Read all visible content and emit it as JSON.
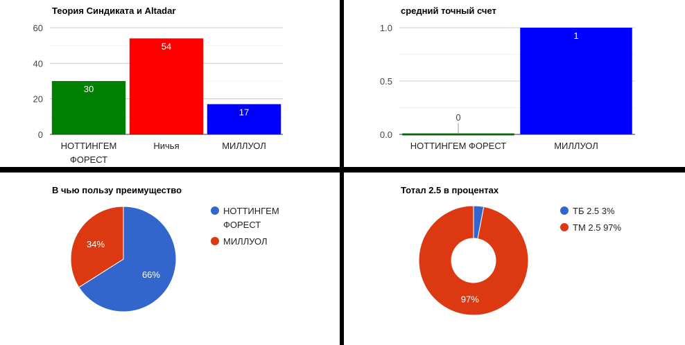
{
  "chart_data": [
    {
      "type": "bar",
      "title": "Теория Синдиката и Altadar",
      "categories": [
        [
          "НОТТИНГЕМ",
          "ФОРЕСТ"
        ],
        [
          "Ничья"
        ],
        [
          "МИЛЛУОЛ"
        ]
      ],
      "values": [
        30,
        54,
        17
      ],
      "value_labels": [
        "30",
        "54",
        "17"
      ],
      "colors": [
        "#008000",
        "#ff0000",
        "#0000ff"
      ],
      "yticks": [
        0,
        20,
        40,
        60
      ],
      "ylim": [
        0,
        60
      ],
      "grid": true,
      "xlabel": "",
      "ylabel": ""
    },
    {
      "type": "bar",
      "title": "средний точный счет",
      "categories": [
        [
          "НОТТИНГЕМ ФОРЕСТ"
        ],
        [
          "МИЛЛУОЛ"
        ]
      ],
      "values": [
        0,
        1
      ],
      "value_labels": [
        "0",
        "1"
      ],
      "colors": [
        "#008000",
        "#0000ff"
      ],
      "yticks": [
        "0.0",
        "0.5",
        "1.0"
      ],
      "ylim": [
        0,
        1
      ],
      "grid": true,
      "xlabel": "",
      "ylabel": ""
    },
    {
      "type": "pie",
      "title": "В чью пользу преимущество",
      "slices": [
        {
          "label": [
            "НОТТИНГЕМ",
            "ФОРЕСТ"
          ],
          "value": 66,
          "pct_label": "66%",
          "color": "#3366cc"
        },
        {
          "label": [
            "МИЛЛУОЛ"
          ],
          "value": 34,
          "pct_label": "34%",
          "color": "#dc3912"
        }
      ],
      "legend_position": "right"
    },
    {
      "type": "pie",
      "donut": true,
      "title": "Тотал 2.5 в процентах",
      "slices": [
        {
          "label": [
            "ТБ 2.5 3%"
          ],
          "value": 3,
          "pct_label": "",
          "color": "#3366cc"
        },
        {
          "label": [
            "ТМ 2.5 97%"
          ],
          "value": 97,
          "pct_label": "97%",
          "color": "#dc3912"
        }
      ],
      "legend_position": "right"
    }
  ]
}
